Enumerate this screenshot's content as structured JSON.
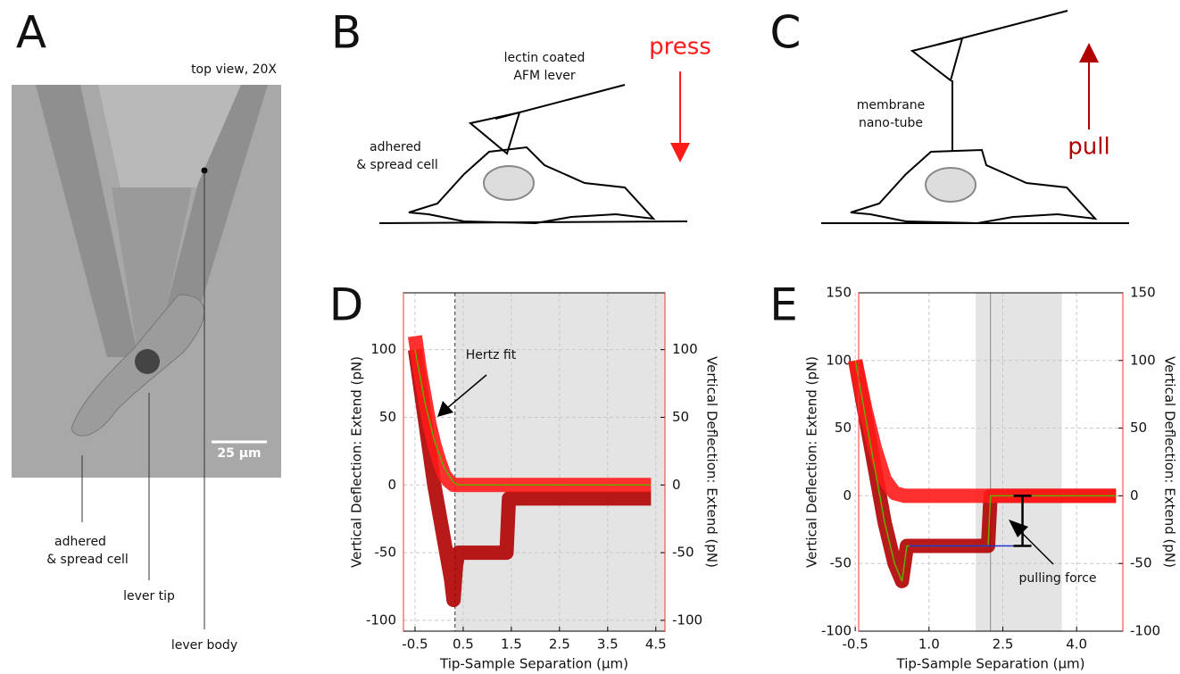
{
  "panel_a": {
    "letter": "A",
    "caption": "top view, 20X",
    "scale_bar": "25 µm",
    "cell_label": [
      "adhered",
      "& spread cell"
    ],
    "tip_label": "lever tip",
    "body_label": "lever body"
  },
  "panel_b": {
    "letter": "B",
    "lever_label": [
      "lectin coated",
      "AFM lever"
    ],
    "cell_label": [
      "adhered",
      "& spread cell"
    ],
    "action": "press"
  },
  "panel_c": {
    "letter": "C",
    "tube_label": [
      "membrane",
      "nano-tube"
    ],
    "action": "pull"
  },
  "chart_data": [
    {
      "type": "line",
      "letter": "D",
      "xlabel": "Tip-Sample Separation (µm)",
      "ylabel": "Vertical Deflection: Extend (pN)",
      "y2label": "Vertical Deflection: Extend (pN)",
      "xlim": [
        -0.74,
        4.69
      ],
      "ylim": [
        -108,
        142
      ],
      "y2lim": [
        -108,
        142
      ],
      "xticks": [
        -0.5,
        0.5,
        1.5,
        2.5,
        3.5,
        4.5
      ],
      "yticks": [
        -100,
        -50,
        0,
        50,
        100
      ],
      "y2ticks": [
        -100,
        -50,
        0,
        50,
        100
      ],
      "grid": true,
      "shade": [
        0.33,
        4.69
      ],
      "contact_point": 0.33,
      "annotation": "Hertz fit",
      "series": [
        {
          "color": "#b00000",
          "x": [
            -0.5,
            -0.3,
            -0.1,
            0.1,
            0.25,
            0.3,
            0.35,
            0.4,
            1.4,
            1.45,
            2,
            3,
            4,
            4.4
          ],
          "values": [
            100,
            50,
            0,
            -40,
            -70,
            -85,
            -60,
            -50,
            -50,
            -10,
            -10,
            -10,
            -10,
            -10
          ]
        },
        {
          "color": "#ff1a1a",
          "x": [
            -0.5,
            -0.4,
            -0.3,
            -0.2,
            -0.1,
            0,
            0.1,
            0.2,
            0.3,
            0.5,
            1,
            2,
            3,
            4,
            4.4
          ],
          "values": [
            110,
            85,
            65,
            45,
            30,
            18,
            8,
            3,
            0,
            0,
            0,
            0,
            0,
            0,
            0
          ]
        },
        {
          "color": "#66aa00",
          "x": [
            -0.5,
            -0.3,
            -0.1,
            0.1,
            0.3,
            0.4,
            4.4
          ],
          "values": [
            100,
            62,
            33,
            13,
            2,
            0,
            0
          ]
        }
      ]
    },
    {
      "type": "line",
      "letter": "E",
      "xlabel": "Tip-Sample Separation (µm)",
      "ylabel": "Vertical Deflection: Extend (pN)",
      "y2label": "Vertical Deflection: Extend (pN)",
      "xlim": [
        -0.43,
        4.94
      ],
      "ylim": [
        -100,
        150
      ],
      "y2lim": [
        -100,
        150
      ],
      "xticks": [
        -0.5,
        {
          "value": 1,
          "label": "1.0"
        },
        2.5,
        {
          "value": 4,
          "label": "4.0"
        }
      ],
      "yticks": [
        -100,
        -50,
        0,
        50,
        100,
        150
      ],
      "y2ticks": [
        -100,
        -50,
        0,
        50,
        100,
        150
      ],
      "grid": true,
      "shade": [
        1.95,
        3.7
      ],
      "contact_point": 2.25,
      "annotation": "pulling force",
      "pulling_force": {
        "x": 2.9,
        "from": 0,
        "to": -37
      },
      "series": [
        {
          "color": "#b00000",
          "x": [
            -0.5,
            -0.2,
            0.1,
            0.3,
            0.45,
            0.55,
            1.0,
            2.2,
            2.25,
            3,
            4,
            4.8
          ],
          "values": [
            100,
            40,
            -20,
            -50,
            -63,
            -37,
            -37,
            -37,
            0,
            0,
            0,
            0
          ]
        },
        {
          "color": "#ff1a1a",
          "x": [
            -0.5,
            -0.3,
            -0.1,
            0.1,
            0.3,
            0.5,
            1,
            2,
            3,
            4,
            4.8
          ],
          "values": [
            100,
            65,
            35,
            12,
            2,
            0,
            0,
            0,
            0,
            0,
            0
          ]
        },
        {
          "color": "#66aa00",
          "x": [
            -0.5,
            -0.2,
            0.1,
            0.3,
            0.45,
            0.55,
            2.2,
            2.25,
            4.8
          ],
          "values": [
            100,
            40,
            -20,
            -50,
            -63,
            -37,
            -37,
            0,
            0
          ]
        },
        {
          "color": "#2233cc",
          "x": [
            0.6,
            2.9
          ],
          "values": [
            -37,
            -37
          ]
        }
      ]
    }
  ]
}
